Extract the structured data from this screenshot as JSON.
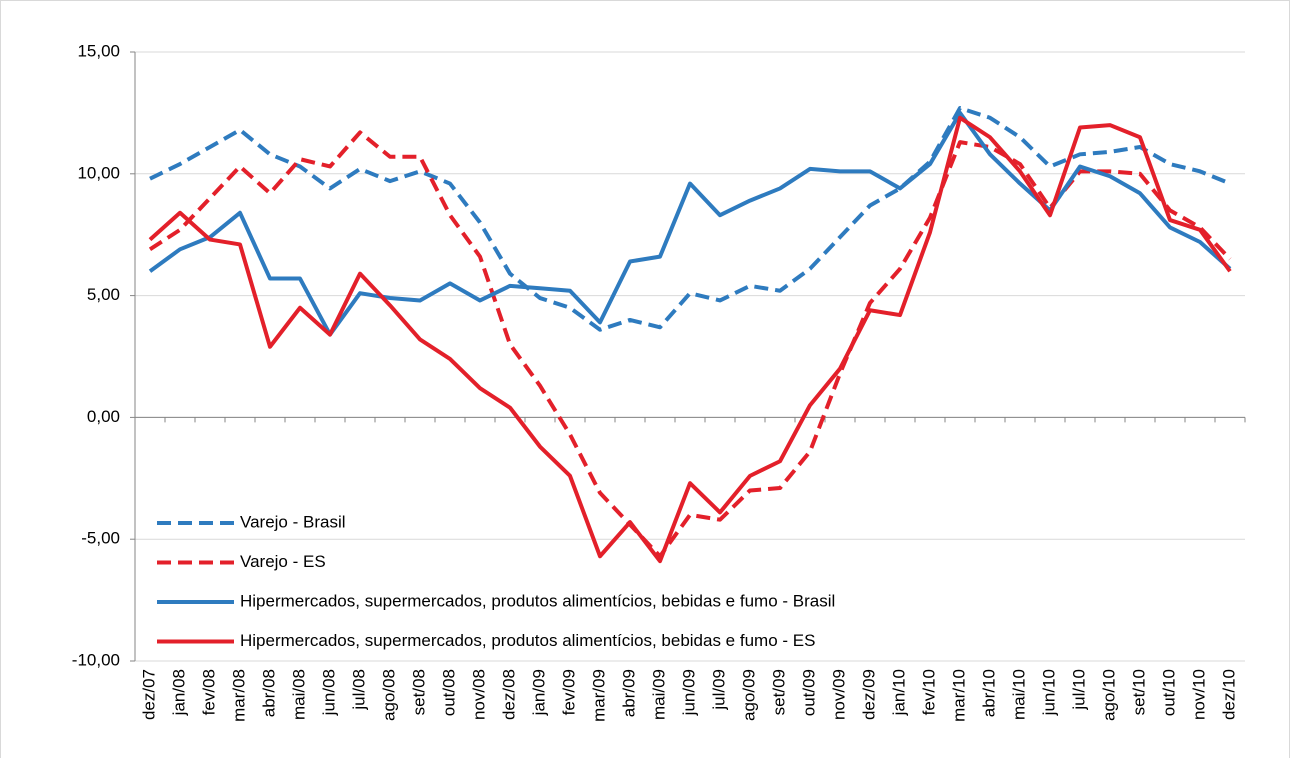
{
  "chart_data": {
    "type": "line",
    "categories": [
      "dez/07",
      "jan/08",
      "fev/08",
      "mar/08",
      "abr/08",
      "mai/08",
      "jun/08",
      "jul/08",
      "ago/08",
      "set/08",
      "out/08",
      "nov/08",
      "dez/08",
      "jan/09",
      "fev/09",
      "mar/09",
      "abr/09",
      "mai/09",
      "jun/09",
      "jul/09",
      "ago/09",
      "set/09",
      "out/09",
      "nov/09",
      "dez/09",
      "jan/10",
      "fev/10",
      "mar/10",
      "abr/10",
      "mai/10",
      "jun/10",
      "jul/10",
      "ago/10",
      "set/10",
      "out/10",
      "nov/10",
      "dez/10"
    ],
    "series": [
      {
        "name": "Varejo - Brasil",
        "color": "#2e7bbf",
        "line_style": "dashed",
        "values": [
          9.8,
          10.4,
          11.1,
          11.8,
          10.8,
          10.3,
          9.4,
          10.2,
          9.7,
          10.1,
          9.6,
          8.0,
          5.9,
          4.9,
          4.5,
          3.6,
          4.0,
          3.7,
          5.1,
          4.8,
          5.4,
          5.2,
          6.1,
          7.4,
          8.7,
          9.4,
          10.5,
          12.7,
          12.3,
          11.5,
          10.3,
          10.8,
          10.9,
          11.1,
          10.4,
          10.1,
          9.6
        ]
      },
      {
        "name": "Varejo - ES",
        "color": "#e3202a",
        "line_style": "dashed",
        "values": [
          6.9,
          7.7,
          9.0,
          10.3,
          9.2,
          10.6,
          10.3,
          11.7,
          10.7,
          10.7,
          8.3,
          6.6,
          3.0,
          1.3,
          -0.7,
          -3.1,
          -4.4,
          -5.7,
          -4.0,
          -4.2,
          -3.0,
          -2.9,
          -1.4,
          1.8,
          4.7,
          6.1,
          8.2,
          11.3,
          11.1,
          10.4,
          8.6,
          10.1,
          10.1,
          10.0,
          8.5,
          7.8,
          6.5
        ]
      },
      {
        "name": "Hipermercados, supermercados, produtos alimentícios, bebidas e fumo - Brasil",
        "color": "#2e7bbf",
        "line_style": "solid",
        "values": [
          6.0,
          6.9,
          7.4,
          8.4,
          5.7,
          5.7,
          3.4,
          5.1,
          4.9,
          4.8,
          5.5,
          4.8,
          5.4,
          5.3,
          5.2,
          3.9,
          6.4,
          6.6,
          9.6,
          8.3,
          8.9,
          9.4,
          10.2,
          10.1,
          10.1,
          9.4,
          10.4,
          12.5,
          10.8,
          9.6,
          8.5,
          10.3,
          9.9,
          9.2,
          7.8,
          7.2,
          6.1
        ]
      },
      {
        "name": "Hipermercados, supermercados, produtos alimentícios, bebidas e fumo - ES",
        "color": "#e3202a",
        "line_style": "solid",
        "values": [
          7.3,
          8.4,
          7.3,
          7.1,
          2.9,
          4.5,
          3.4,
          5.9,
          4.6,
          3.2,
          2.4,
          1.2,
          0.4,
          -1.2,
          -2.4,
          -5.7,
          -4.3,
          -5.9,
          -2.7,
          -3.9,
          -2.4,
          -1.8,
          0.5,
          2.0,
          4.4,
          4.2,
          7.6,
          12.3,
          11.5,
          10.1,
          8.3,
          11.9,
          12.0,
          11.5,
          8.1,
          7.7,
          6.0
        ]
      }
    ],
    "ylim": [
      -10,
      15
    ],
    "yticks": [
      {
        "value": -10,
        "label": "-10,00"
      },
      {
        "value": -5,
        "label": "-5,00"
      },
      {
        "value": 0,
        "label": "0,00"
      },
      {
        "value": 5,
        "label": "5,00"
      },
      {
        "value": 10,
        "label": "10,00"
      },
      {
        "value": 15,
        "label": "15,00"
      }
    ],
    "grid": true,
    "legend": "lower left"
  }
}
